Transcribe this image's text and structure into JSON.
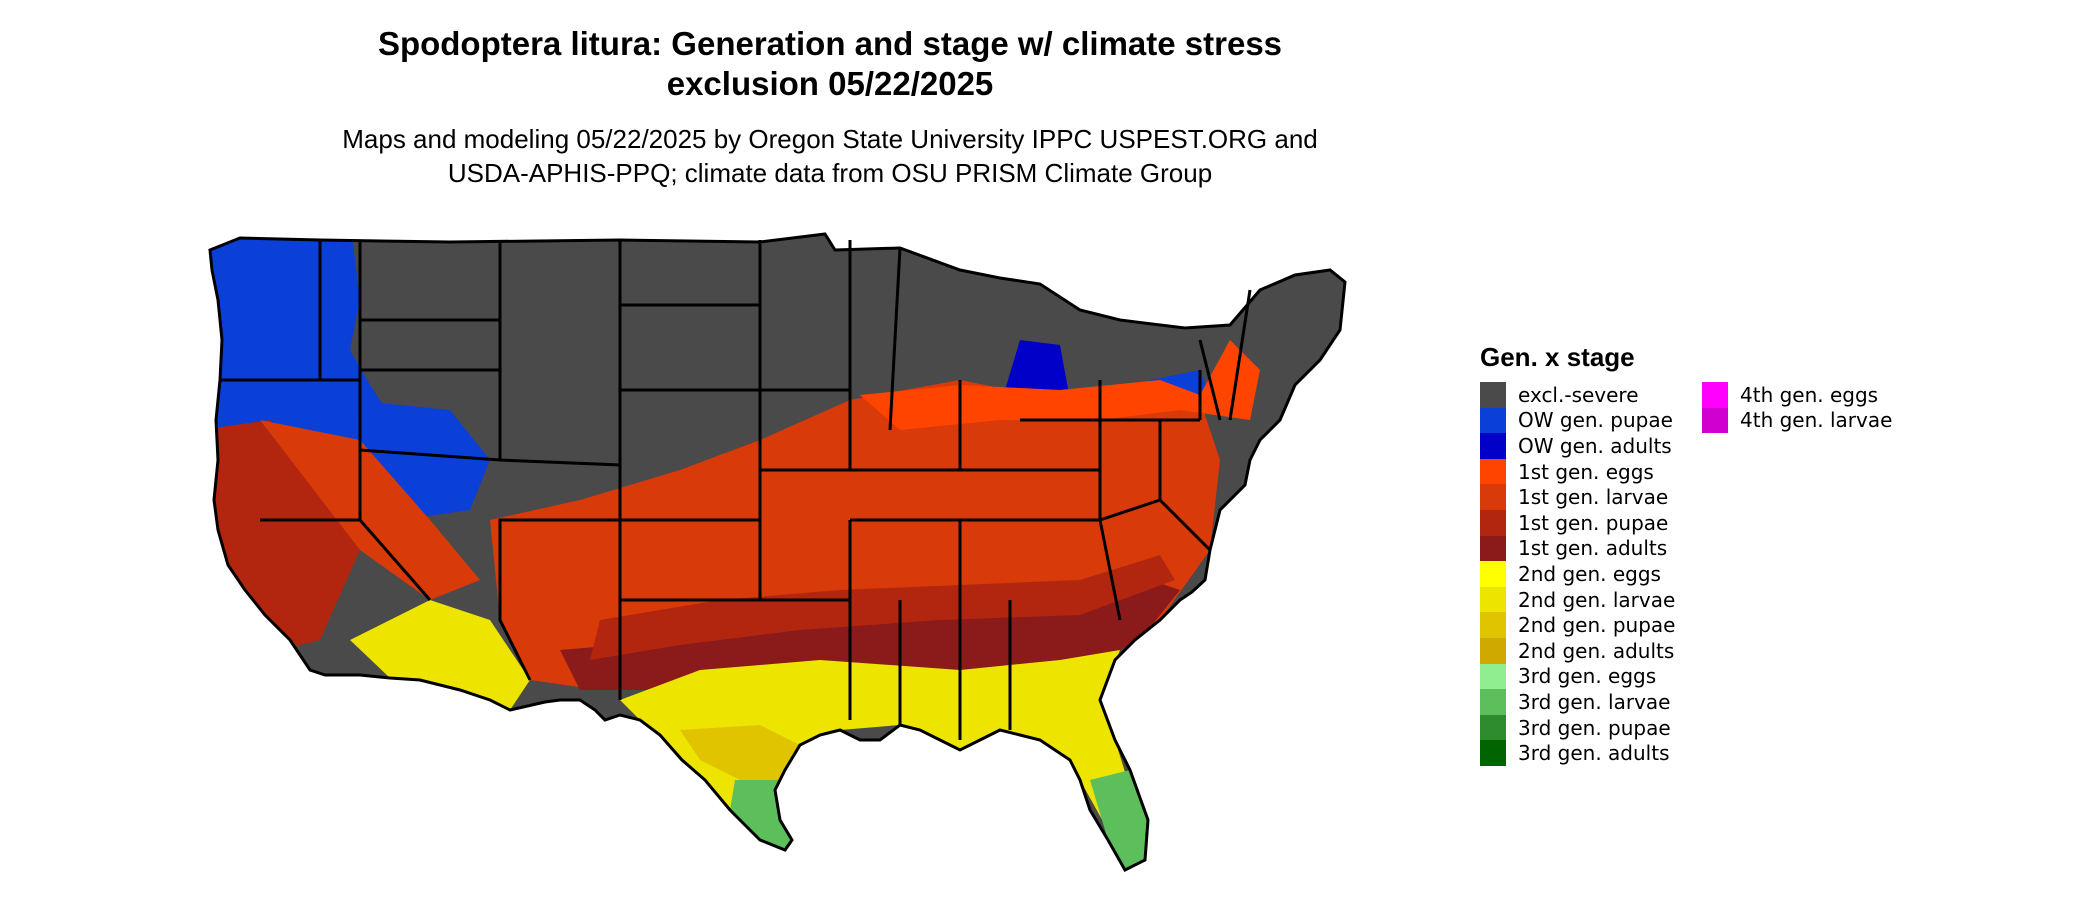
{
  "title_line1": "Spodoptera litura: Generation and stage w/ climate stress",
  "title_line2": "exclusion 05/22/2025",
  "subtitle_line1": "Maps and modeling 05/22/2025 by Oregon State University IPPC USPEST.ORG and",
  "subtitle_line2": "USDA-APHIS-PPQ; climate data from OSU PRISM Climate Group",
  "map": {
    "region": "Contiguous United States",
    "colors": {
      "excluded": "#4a4a4a",
      "ow_pupae": "#0a3fd8",
      "ow_adults": "#0000c8",
      "gen1_eggs": "#ff4400",
      "gen1_larvae": "#d93a0a",
      "gen1_pupae": "#b2260f",
      "gen1_adults": "#8b1a1a",
      "gen2_eggs": "#ffff00",
      "gen2_larvae": "#ede500",
      "gen2_pupae": "#e0c400",
      "gen2_adults": "#cfa800",
      "gen3_eggs": "#90ee90",
      "gen3_larvae": "#5cbf5c",
      "gen3_pupae": "#2e8b2e",
      "gen3_adults": "#006400",
      "gen4_eggs": "#ff00ff",
      "gen4_larvae": "#d000d0",
      "border": "#000000"
    }
  },
  "legend": {
    "title": "Gen. x stage",
    "items": [
      {
        "label": "excl.-severe",
        "color": "#4a4a4a"
      },
      {
        "label": "OW gen. pupae",
        "color": "#0a3fd8"
      },
      {
        "label": "OW gen. adults",
        "color": "#0000c8"
      },
      {
        "label": "1st gen. eggs",
        "color": "#ff4400"
      },
      {
        "label": "1st gen. larvae",
        "color": "#d93a0a"
      },
      {
        "label": "1st gen. pupae",
        "color": "#b2260f"
      },
      {
        "label": "1st gen. adults",
        "color": "#8b1a1a"
      },
      {
        "label": "2nd gen. eggs",
        "color": "#ffff00"
      },
      {
        "label": "2nd gen. larvae",
        "color": "#ede500"
      },
      {
        "label": "2nd gen. pupae",
        "color": "#e0c400"
      },
      {
        "label": "2nd gen. adults",
        "color": "#cfa800"
      },
      {
        "label": "3rd gen. eggs",
        "color": "#90ee90"
      },
      {
        "label": "3rd gen. larvae",
        "color": "#5cbf5c"
      },
      {
        "label": "3rd gen. pupae",
        "color": "#2e8b2e"
      },
      {
        "label": "3rd gen. adults",
        "color": "#006400"
      },
      {
        "label": "4th gen. eggs",
        "color": "#ff00ff"
      },
      {
        "label": "4th gen. larvae",
        "color": "#d000d0"
      }
    ]
  }
}
